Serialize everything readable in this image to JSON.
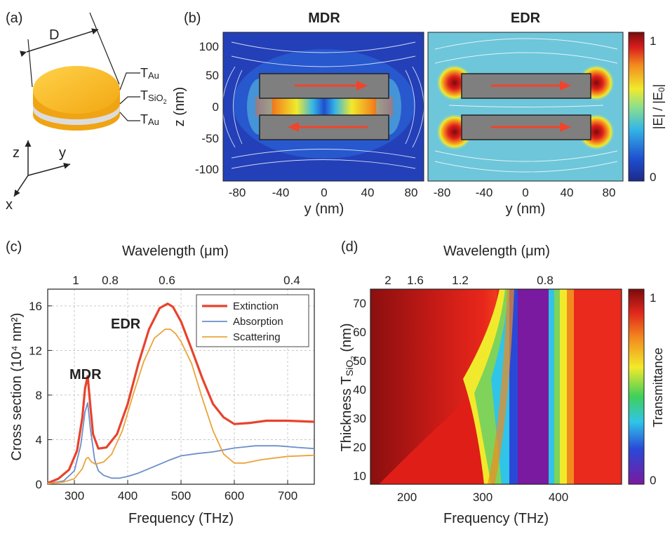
{
  "panels": {
    "a": {
      "label": "(a)",
      "D": "D",
      "T_Au_top": "T",
      "T_Au_top_sub": "Au",
      "T_SiO2": "T",
      "T_SiO2_sub": "SiO",
      "T_SiO2_subsub": "2",
      "T_Au_bot": "T",
      "T_Au_bot_sub": "Au",
      "axis_z": "z",
      "axis_y": "y",
      "axis_x": "x"
    },
    "b": {
      "label": "(b)",
      "mdr_title": "MDR",
      "edr_title": "EDR",
      "zlabel": "z (nm)",
      "ylabel": "y (nm)",
      "zticks": [
        "100",
        "50",
        "0",
        "-50",
        "-100"
      ],
      "yticks": [
        "-80",
        "-40",
        "0",
        "40",
        "80"
      ],
      "cbar_label": "|E| / |E",
      "cbar_label_sub": "0",
      "cbar_label_end": "|",
      "cbar_top": "1",
      "cbar_bottom": "0"
    },
    "c": {
      "label": "(c)",
      "top_label": "Wavelength (μm)",
      "top_ticks": [
        "1",
        "0.8",
        "0.6",
        "0.4"
      ],
      "mdr": "MDR",
      "edr": "EDR"
    },
    "d": {
      "label": "(d)",
      "top_label": "Wavelength (μm)",
      "top_ticks": [
        "2",
        "1.6",
        "1.2",
        "0.8"
      ],
      "ylabel": "Thickness T",
      "ylabel_sub": "SiO",
      "ylabel_subsub": "2",
      "ylabel_unit": " (nm)",
      "yticks": [
        "70",
        "60",
        "50",
        "40",
        "30",
        "20",
        "10"
      ],
      "xlabel": "Frequency (THz)",
      "xticks": [
        "200",
        "300",
        "400"
      ],
      "cbar_label": "Transmittance",
      "cbar_top": "1",
      "cbar_bottom": "0"
    }
  },
  "colors": {
    "extinction": "#e8432d",
    "absorption": "#6b8fc9",
    "scattering": "#eba43a"
  },
  "chart_data": {
    "type": "line",
    "title": "",
    "xlabel": "Frequency (THz)",
    "ylabel": "Cross section  (10⁴ nm²)",
    "xlim": [
      250,
      750
    ],
    "ylim": [
      0,
      17.5
    ],
    "xticks": [
      300,
      400,
      500,
      600,
      700
    ],
    "yticks": [
      0,
      4,
      8,
      12,
      16
    ],
    "legend_position": "top-right",
    "grid": true,
    "series": [
      {
        "name": "Extinction",
        "x": [
          250,
          270,
          290,
          305,
          315,
          320,
          325,
          330,
          335,
          345,
          360,
          380,
          400,
          420,
          440,
          460,
          475,
          485,
          500,
          520,
          540,
          560,
          580,
          600,
          630,
          660,
          700,
          750
        ],
        "y": [
          0.1,
          0.5,
          1.3,
          3.0,
          6.0,
          8.6,
          9.7,
          7.0,
          4.5,
          3.2,
          3.3,
          4.5,
          7.2,
          10.8,
          13.9,
          15.8,
          16.2,
          15.9,
          14.6,
          12.1,
          9.5,
          7.2,
          6.0,
          5.4,
          5.5,
          5.7,
          5.7,
          5.6
        ]
      },
      {
        "name": "Absorption",
        "x": [
          250,
          280,
          300,
          312,
          320,
          325,
          330,
          338,
          345,
          355,
          370,
          385,
          400,
          420,
          440,
          460,
          480,
          500,
          530,
          560,
          600,
          640,
          680,
          720,
          750
        ],
        "y": [
          0.05,
          0.3,
          1.2,
          3.5,
          6.5,
          7.3,
          5.0,
          2.2,
          1.2,
          0.8,
          0.55,
          0.55,
          0.7,
          1.0,
          1.4,
          1.8,
          2.2,
          2.55,
          2.75,
          2.9,
          3.25,
          3.45,
          3.45,
          3.3,
          3.2
        ]
      },
      {
        "name": "Scattering",
        "x": [
          250,
          280,
          300,
          315,
          322,
          326,
          332,
          340,
          355,
          370,
          390,
          410,
          430,
          450,
          470,
          480,
          490,
          500,
          520,
          540,
          560,
          580,
          600,
          620,
          650,
          700,
          750
        ],
        "y": [
          0.05,
          0.2,
          0.5,
          1.4,
          2.3,
          2.4,
          2.0,
          1.8,
          2.0,
          2.7,
          4.8,
          8.0,
          11.0,
          13.1,
          13.9,
          13.9,
          13.5,
          12.8,
          10.8,
          7.7,
          4.8,
          2.7,
          1.9,
          1.9,
          2.2,
          2.5,
          2.6
        ]
      }
    ]
  }
}
